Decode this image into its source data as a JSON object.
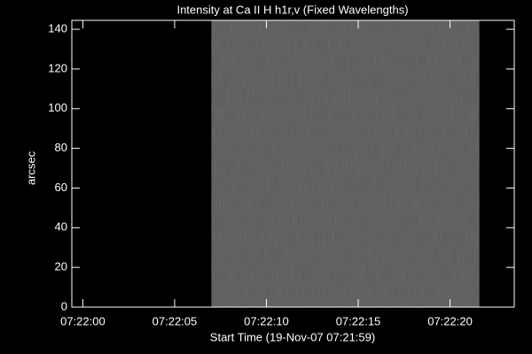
{
  "chart_data": {
    "type": "image",
    "title": "Intensity at Ca II H h1r,v (Fixed Wavelengths)",
    "xlabel": "Start Time (19-Nov-07 07:21:59)",
    "ylabel": "arcsec",
    "xlim": [
      "07:21:59.4",
      "07:22:23.5"
    ],
    "xticks": [
      "07:22:00",
      "07:22:05",
      "07:22:10",
      "07:22:15",
      "07:22:20"
    ],
    "ylim": [
      0,
      144.5
    ],
    "yticks": [
      0,
      20,
      40,
      60,
      80,
      100,
      120,
      140
    ],
    "image_x": [
      "07:22:07.0",
      "07:22:21.6"
    ],
    "color": "#5c5c5c"
  }
}
